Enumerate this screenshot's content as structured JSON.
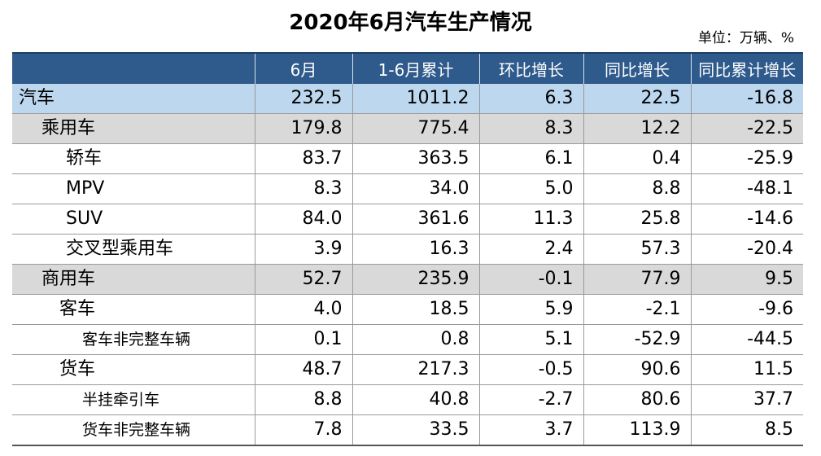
{
  "title": "2020年6月汽车生产情况",
  "unit": "单位：万辆、%",
  "table": {
    "headers": [
      "",
      "6月",
      "1-6月累计",
      "环比增长",
      "同比增长",
      "同比累计增长"
    ],
    "rows": [
      {
        "name": "汽车",
        "level": 0,
        "values": [
          "232.5",
          "1011.2",
          "6.3",
          "22.5",
          "-16.8"
        ]
      },
      {
        "name": "乘用车",
        "level": 1,
        "values": [
          "179.8",
          "775.4",
          "8.3",
          "12.2",
          "-22.5"
        ]
      },
      {
        "name": "轿车",
        "level": 2,
        "values": [
          "83.7",
          "363.5",
          "6.1",
          "0.4",
          "-25.9"
        ]
      },
      {
        "name": "MPV",
        "level": 2,
        "values": [
          "8.3",
          "34.0",
          "5.0",
          "8.8",
          "-48.1"
        ]
      },
      {
        "name": "SUV",
        "level": 2,
        "values": [
          "84.0",
          "361.6",
          "11.3",
          "25.8",
          "-14.6"
        ]
      },
      {
        "name": "交叉型乘用车",
        "level": 2,
        "values": [
          "3.9",
          "16.3",
          "2.4",
          "57.3",
          "-20.4"
        ]
      },
      {
        "name": "商用车",
        "level": 1,
        "values": [
          "52.7",
          "235.9",
          "-0.1",
          "77.9",
          "9.5"
        ]
      },
      {
        "name": "客车",
        "level": 3,
        "values": [
          "4.0",
          "18.5",
          "5.9",
          "-2.1",
          "-9.6"
        ]
      },
      {
        "name": "客车非完整车辆",
        "level": 4,
        "values": [
          "0.1",
          "0.8",
          "5.1",
          "-52.9",
          "-44.5"
        ]
      },
      {
        "name": "货车",
        "level": 3,
        "values": [
          "48.7",
          "217.3",
          "-0.5",
          "90.6",
          "11.5"
        ]
      },
      {
        "name": "半挂牵引车",
        "level": 4,
        "values": [
          "8.8",
          "40.8",
          "-2.7",
          "80.6",
          "37.7"
        ]
      },
      {
        "name": "货车非完整车辆",
        "level": 4,
        "values": [
          "7.8",
          "33.5",
          "3.7",
          "113.9",
          "8.5"
        ]
      }
    ]
  }
}
